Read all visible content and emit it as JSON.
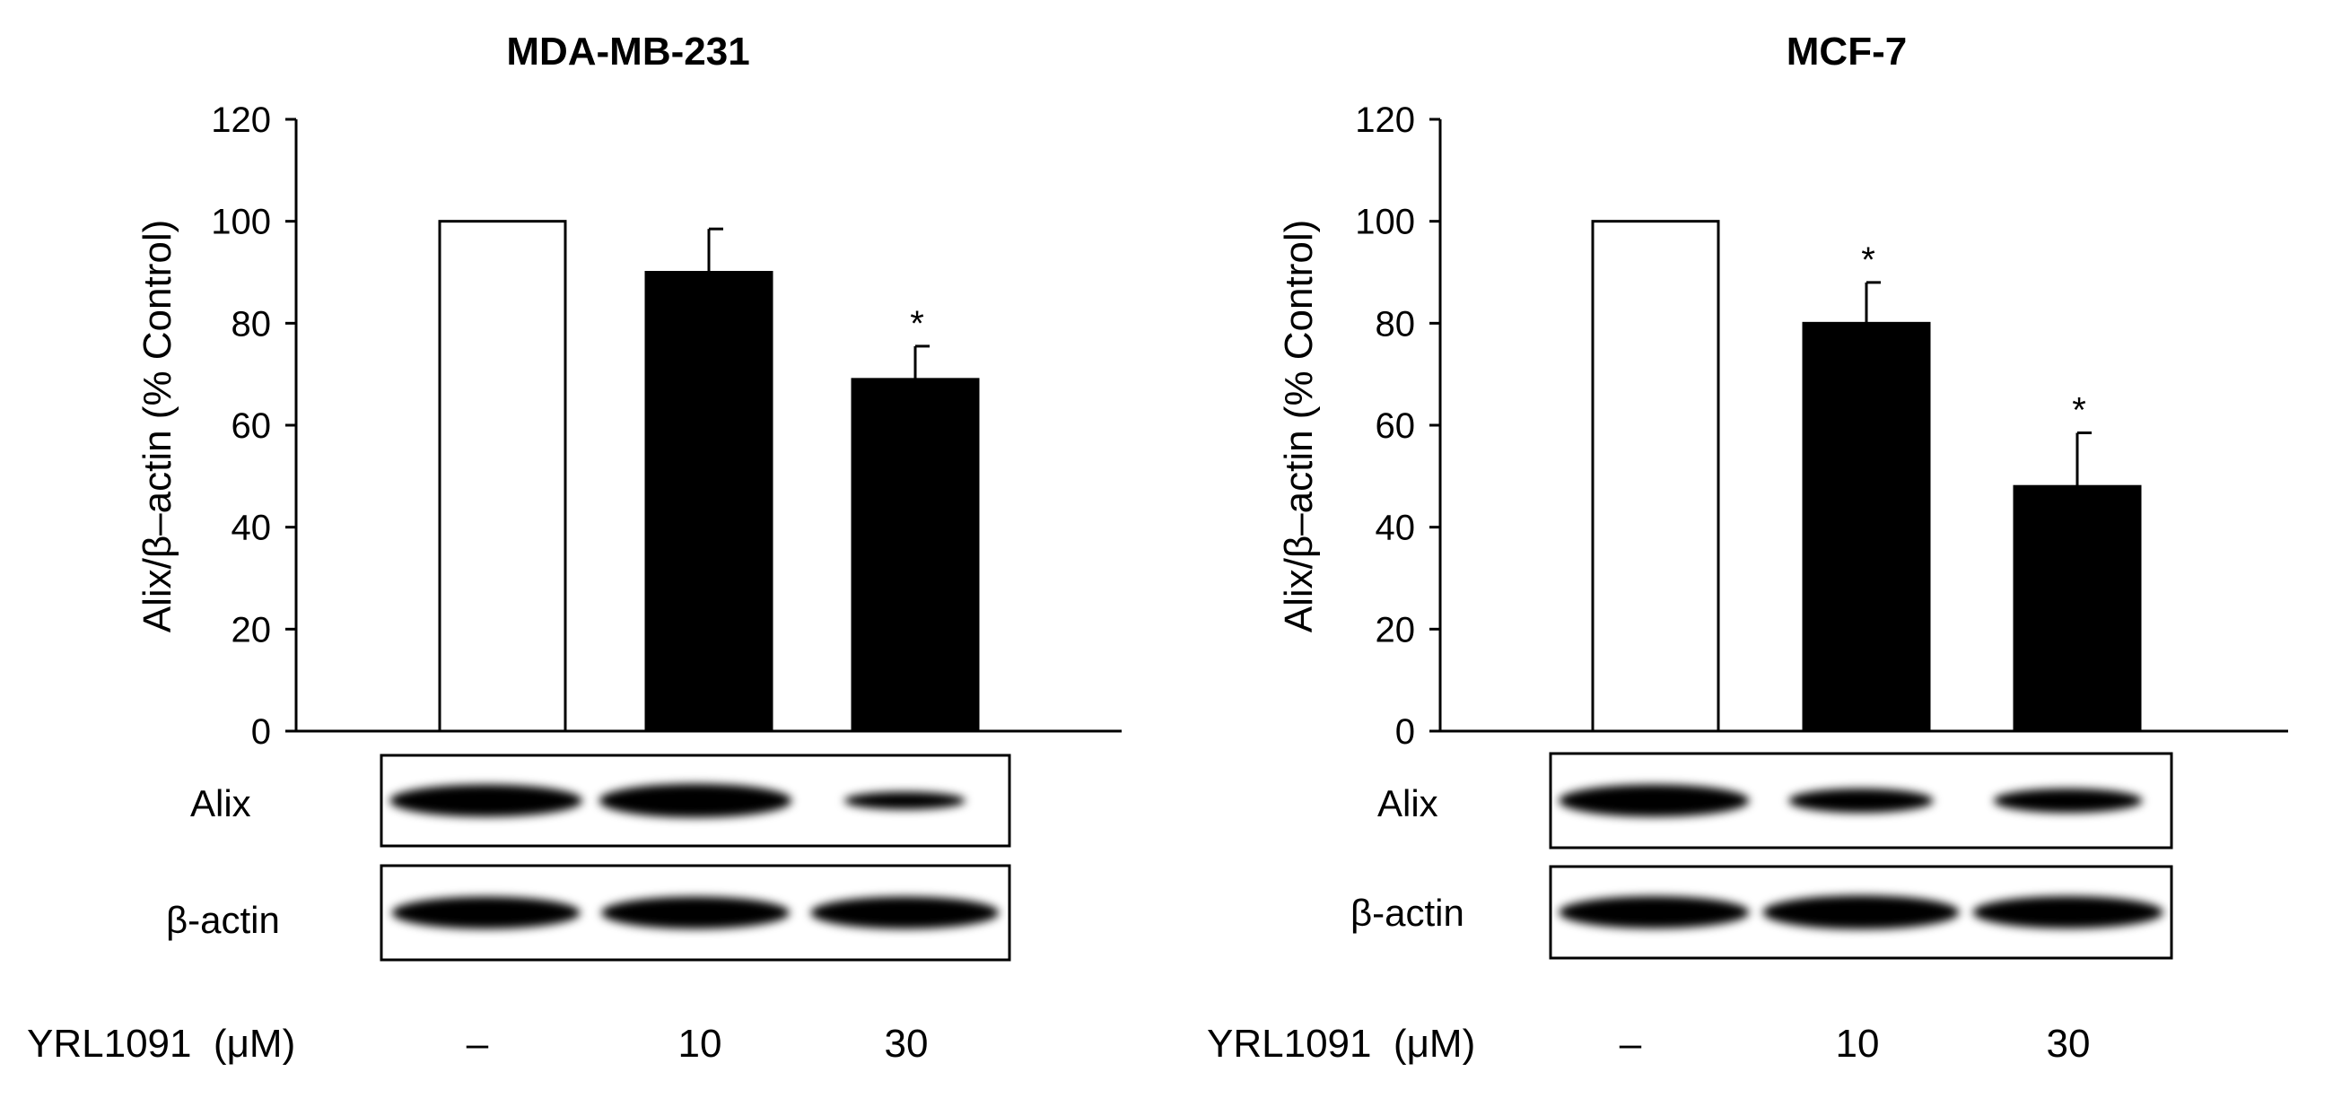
{
  "chart_data": [
    {
      "type": "bar",
      "title": "MDA-MB-231",
      "ylabel": "Alix/β–actin (% Control)",
      "ylim": [
        0,
        120
      ],
      "yticks": [
        "0",
        "20",
        "40",
        "60",
        "80",
        "100",
        "120"
      ],
      "categories": [
        "–",
        "10",
        "30"
      ],
      "values": [
        100,
        90,
        69
      ],
      "errors": [
        0,
        8.5,
        6.5
      ],
      "significance": [
        "",
        "",
        "*"
      ],
      "bar_colors": [
        "#ffffff",
        "#000000",
        "#000000"
      ],
      "blot_labels": [
        "Alix",
        "β-actin"
      ],
      "treatment_label": "YRL1091  (μM)",
      "grid": false
    },
    {
      "type": "bar",
      "title": "MCF-7",
      "ylabel": "Alix/β–actin (% Control)",
      "ylim": [
        0,
        120
      ],
      "yticks": [
        "0",
        "20",
        "40",
        "60",
        "80",
        "100",
        "120"
      ],
      "categories": [
        "–",
        "10",
        "30"
      ],
      "values": [
        100,
        80,
        48
      ],
      "errors": [
        0,
        8,
        10.5
      ],
      "significance": [
        "",
        "*",
        "*"
      ],
      "bar_colors": [
        "#ffffff",
        "#000000",
        "#000000"
      ],
      "blot_labels": [
        "Alix",
        "β-actin"
      ],
      "treatment_label": "YRL1091  (μM)",
      "grid": false
    }
  ]
}
